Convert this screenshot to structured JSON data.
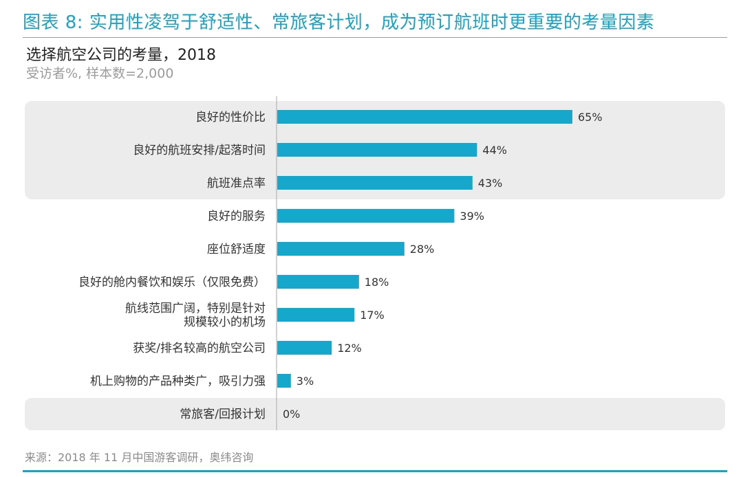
{
  "figure": {
    "title": "图表 8: 实用性凌驾于舒适性、常旅客计划，成为预订航班时更重要的考量因素"
  },
  "chart_data": {
    "type": "bar",
    "orientation": "horizontal",
    "title": "选择航空公司的考量，2018",
    "subtitle": "受访者%, 样本数=2,000",
    "xlabel": "",
    "ylabel": "",
    "value_suffix": "%",
    "xlim": [
      0,
      100
    ],
    "grid": false,
    "highlight_color": "#ececec",
    "bar_color": "#16a8cc",
    "highlighted_categories": [
      0,
      1,
      2,
      9
    ],
    "categories": [
      [
        "良好的性价比"
      ],
      [
        "良好的航班安排/起落时间"
      ],
      [
        "航班准点率"
      ],
      [
        "良好的服务"
      ],
      [
        "座位舒适度"
      ],
      [
        "良好的舱内餐饮和娱乐（仅限免费）"
      ],
      [
        "航线范围广阔，特别是针对",
        "规模较小的机场"
      ],
      [
        "获奖/排名较高的航空公司"
      ],
      [
        "机上购物的产品种类广，吸引力强"
      ],
      [
        "常旅客/回报计划"
      ]
    ],
    "values": [
      65,
      44,
      43,
      39,
      28,
      18,
      17,
      12,
      3,
      0
    ],
    "value_labels": [
      "65%",
      "44%",
      "43%",
      "39%",
      "28%",
      "18%",
      "17%",
      "12%",
      "3%",
      "0%"
    ]
  },
  "source": {
    "text": "来源：2018 年 11 月中国游客调研，奥纬咨询"
  }
}
